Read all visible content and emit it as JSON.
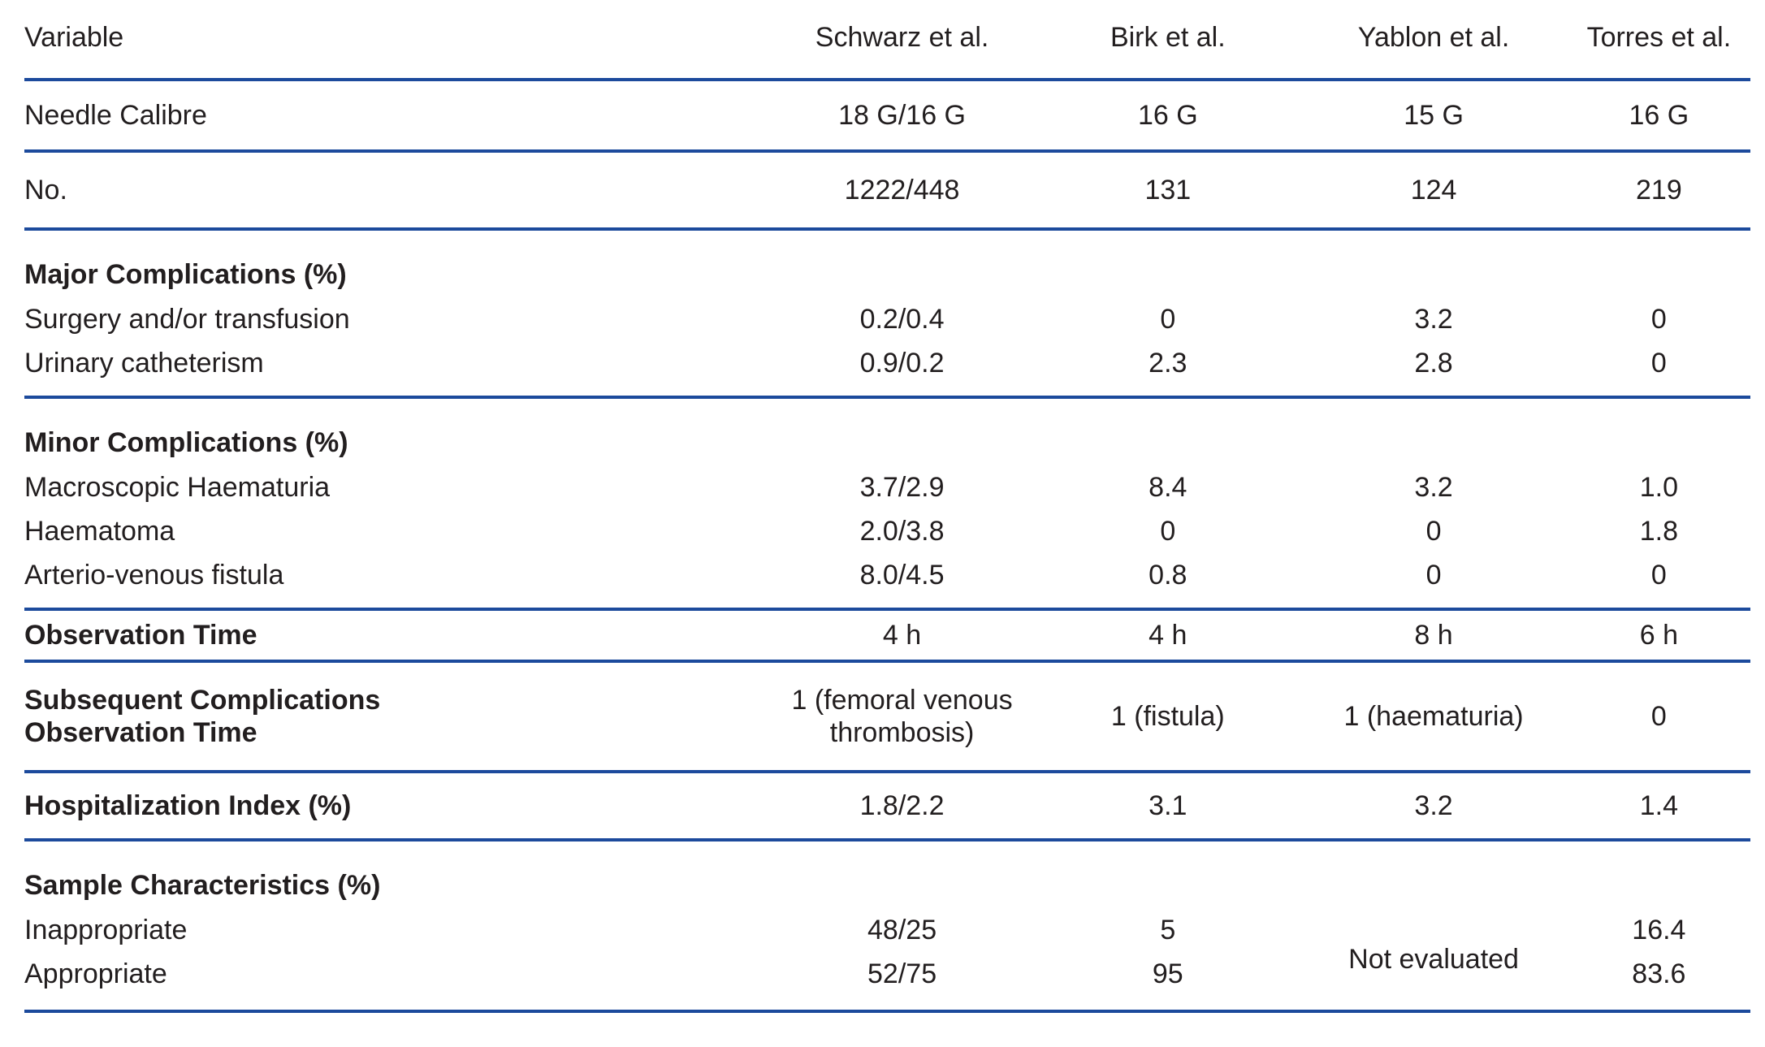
{
  "colors": {
    "rule": "#1c4a9c",
    "text": "#221e1f",
    "background": "#ffffff"
  },
  "header": {
    "variable": "Variable",
    "studies": [
      "Schwarz et al.",
      "Birk et al.",
      "Yablon et al.",
      "Torres et al."
    ]
  },
  "rows": {
    "needle_calibre": {
      "label": "Needle Calibre",
      "values": [
        "18 G/16 G",
        "16 G",
        "15 G",
        "16 G"
      ]
    },
    "no": {
      "label": "No.",
      "values": [
        "1222/448",
        "131",
        "124",
        "219"
      ]
    },
    "major_complications": {
      "label": "Major Complications (%)"
    },
    "surgery_transfusion": {
      "label": "Surgery and/or transfusion",
      "values": [
        "0.2/0.4",
        "0",
        "3.2",
        "0"
      ]
    },
    "urinary_catheterism": {
      "label": "Urinary catheterism",
      "values": [
        "0.9/0.2",
        "2.3",
        "2.8",
        "0"
      ]
    },
    "minor_complications": {
      "label": "Minor Complications (%)"
    },
    "macroscopic_haematuria": {
      "label": "Macroscopic Haematuria",
      "values": [
        "3.7/2.9",
        "8.4",
        "3.2",
        "1.0"
      ]
    },
    "haematoma": {
      "label": "Haematoma",
      "values": [
        "2.0/3.8",
        "0",
        "0",
        "1.8"
      ]
    },
    "arterio_venous_fistula": {
      "label": "Arterio-venous fistula",
      "values": [
        "8.0/4.5",
        "0.8",
        "0",
        "0"
      ]
    },
    "observation_time": {
      "label": "Observation Time",
      "values": [
        "4 h",
        "4 h",
        "8 h",
        "6 h"
      ]
    },
    "subsequent_complications": {
      "label_line1": "Subsequent Complications",
      "label_line2": "Observation Time",
      "values": [
        "1 (femoral venous thrombosis)",
        "1 (fistula)",
        "1 (haematuria)",
        "0"
      ]
    },
    "hospitalization_index": {
      "label": "Hospitalization Index (%)",
      "values": [
        "1.8/2.2",
        "3.1",
        "3.2",
        "1.4"
      ]
    },
    "sample_characteristics": {
      "label": "Sample Characteristics (%)"
    },
    "inappropriate": {
      "label": "Inappropriate",
      "schwarz": "48/25",
      "birk": "5",
      "torres": "16.4"
    },
    "appropriate": {
      "label": "Appropriate",
      "schwarz": "52/75",
      "birk": "95",
      "torres": "83.6"
    },
    "yablon_not_evaluated": "Not evaluated"
  }
}
